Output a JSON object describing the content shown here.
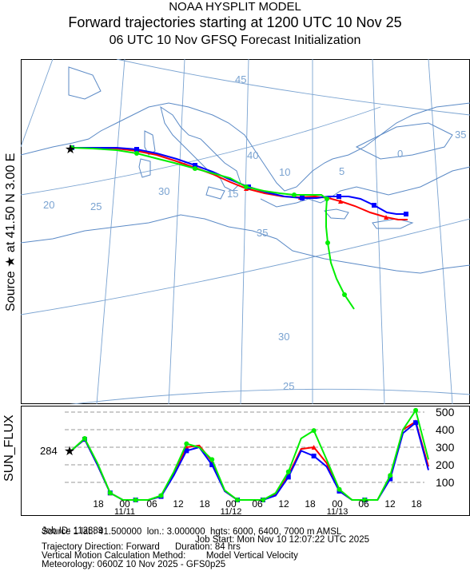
{
  "header": {
    "title_line1": "NOAA HYSPLIT MODEL",
    "title_line2": "Forward trajectories starting at 1200 UTC 10 Nov 25",
    "title_line3": "06 UTC 10 Nov    GFSQ  Forecast Initialization"
  },
  "side_labels": {
    "source_label": "Source ★  at  41.50 N  3.00 E",
    "flux_label": "SUN_FLUX"
  },
  "map": {
    "grid_labels": [
      {
        "text": "45"
      },
      {
        "text": "40"
      },
      {
        "text": "35"
      },
      {
        "text": "30"
      },
      {
        "text": "25"
      },
      {
        "text": "20"
      },
      {
        "text": "15"
      },
      {
        "text": "10"
      },
      {
        "text": "5"
      },
      {
        "text": "0"
      },
      {
        "text": "35"
      },
      {
        "text": "30"
      },
      {
        "text": "25"
      }
    ],
    "colors": {
      "red": "#ff0000",
      "blue": "#0000ff",
      "green": "#00ee00",
      "coast": "#5b8ac6",
      "grid": "#7aa3d1"
    }
  },
  "flux": {
    "source_value": "284",
    "yticks": [
      "500",
      "400",
      "300",
      "200",
      "100"
    ],
    "xticks": [
      "18",
      "00",
      "06",
      "12",
      "18",
      "00",
      "06",
      "12",
      "18",
      "00",
      "06",
      "12",
      "18"
    ],
    "dates": [
      "11/11",
      "11/12",
      "11/13"
    ]
  },
  "chart_data": {
    "type": "line",
    "ylabel": "SUN_FLUX",
    "ylim": [
      0,
      550
    ],
    "x_hours": [
      0,
      3,
      6,
      9,
      12,
      15,
      18,
      21,
      24,
      27,
      30,
      33,
      36,
      39,
      42,
      45,
      48,
      51,
      54,
      57,
      60,
      63,
      66,
      69,
      72,
      75,
      78,
      81,
      84
    ],
    "series": [
      {
        "color": "red",
        "values": [
          284,
          345,
          200,
          40,
          0,
          0,
          0,
          20,
          150,
          300,
          310,
          220,
          50,
          0,
          0,
          0,
          30,
          140,
          290,
          300,
          210,
          50,
          0,
          0,
          0,
          130,
          400,
          445,
          190
        ]
      },
      {
        "color": "blue",
        "values": [
          284,
          345,
          200,
          40,
          0,
          0,
          0,
          20,
          140,
          280,
          300,
          200,
          50,
          0,
          0,
          0,
          25,
          130,
          280,
          250,
          190,
          50,
          0,
          0,
          0,
          120,
          380,
          440,
          170
        ]
      },
      {
        "color": "green",
        "values": [
          284,
          350,
          210,
          40,
          0,
          0,
          0,
          25,
          160,
          320,
          300,
          230,
          55,
          0,
          0,
          0,
          40,
          160,
          350,
          395,
          230,
          60,
          0,
          0,
          0,
          140,
          400,
          510,
          230
        ]
      }
    ]
  },
  "info": {
    "job_id": "Job ID: 112389",
    "job_start": "Job Start: Mon Nov 10 12:07:22 UTC 2025",
    "source_line": "Source 1 lat.: 41.500000  lon.: 3.000000  hgts: 6000, 6400, 7000 m AMSL",
    "direction": "Trajectory Direction: Forward      Duration: 84 hrs",
    "vertical": "Vertical Motion Calculation Method:        Model Vertical Velocity",
    "met": "Meteorology: 0600Z 10 Nov 2025 - GFS0p25"
  }
}
